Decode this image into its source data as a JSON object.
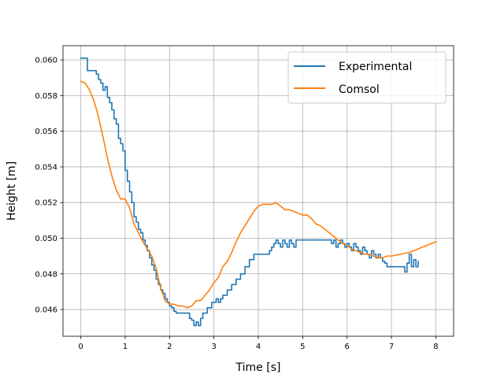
{
  "chart_data": {
    "type": "line",
    "xlabel": "Time [s]",
    "ylabel": "Height [m]",
    "xlim": [
      -0.4,
      8.4
    ],
    "ylim": [
      0.0445,
      0.0608
    ],
    "xticks": [
      0,
      1,
      2,
      3,
      4,
      5,
      6,
      7,
      8
    ],
    "xtick_labels": [
      "0",
      "1",
      "2",
      "3",
      "4",
      "5",
      "6",
      "7",
      "8"
    ],
    "yticks": [
      0.046,
      0.048,
      0.05,
      0.052,
      0.054,
      0.056,
      0.058,
      0.06
    ],
    "ytick_labels": [
      "0.046",
      "0.048",
      "0.050",
      "0.052",
      "0.054",
      "0.056",
      "0.058",
      "0.060"
    ],
    "grid": true,
    "legend_position": "top-right",
    "series": [
      {
        "name": "Experimental",
        "color": "#1f77b4",
        "step": true,
        "x": [
          0,
          0.1,
          0.15,
          0.3,
          0.35,
          0.4,
          0.45,
          0.5,
          0.55,
          0.6,
          0.65,
          0.7,
          0.75,
          0.8,
          0.85,
          0.9,
          0.95,
          1.0,
          1.05,
          1.1,
          1.15,
          1.2,
          1.25,
          1.3,
          1.35,
          1.4,
          1.45,
          1.5,
          1.55,
          1.6,
          1.65,
          1.7,
          1.75,
          1.8,
          1.85,
          1.9,
          1.95,
          2.0,
          2.05,
          2.1,
          2.15,
          2.2,
          2.3,
          2.4,
          2.45,
          2.5,
          2.55,
          2.6,
          2.65,
          2.7,
          2.75,
          2.8,
          2.85,
          2.9,
          2.95,
          3.0,
          3.05,
          3.1,
          3.15,
          3.2,
          3.3,
          3.4,
          3.5,
          3.6,
          3.7,
          3.8,
          3.9,
          4.0,
          4.1,
          4.2,
          4.25,
          4.3,
          4.35,
          4.4,
          4.45,
          4.5,
          4.55,
          4.6,
          4.65,
          4.7,
          4.75,
          4.8,
          4.85,
          4.9,
          5.0,
          5.1,
          5.2,
          5.3,
          5.4,
          5.5,
          5.6,
          5.65,
          5.7,
          5.75,
          5.8,
          5.85,
          5.9,
          5.95,
          6.0,
          6.05,
          6.1,
          6.15,
          6.2,
          6.25,
          6.3,
          6.35,
          6.4,
          6.45,
          6.5,
          6.55,
          6.6,
          6.65,
          6.7,
          6.75,
          6.8,
          6.85,
          6.9,
          6.95,
          7.0,
          7.05,
          7.1,
          7.15,
          7.2,
          7.25,
          7.3,
          7.35,
          7.4,
          7.45,
          7.5,
          7.55,
          7.6
        ],
        "y": [
          0.0601,
          0.0601,
          0.0594,
          0.0594,
          0.0592,
          0.0589,
          0.0587,
          0.0583,
          0.0585,
          0.0579,
          0.0576,
          0.0572,
          0.0567,
          0.0564,
          0.0556,
          0.0553,
          0.0549,
          0.0538,
          0.0532,
          0.0526,
          0.052,
          0.0512,
          0.0509,
          0.0505,
          0.0503,
          0.0499,
          0.0496,
          0.0493,
          0.0489,
          0.0485,
          0.0482,
          0.0477,
          0.0474,
          0.0471,
          0.0469,
          0.0466,
          0.0464,
          0.0462,
          0.0461,
          0.0459,
          0.0458,
          0.0458,
          0.0458,
          0.0458,
          0.0455,
          0.0454,
          0.0451,
          0.0453,
          0.0451,
          0.0455,
          0.0458,
          0.0458,
          0.0461,
          0.0461,
          0.0464,
          0.0464,
          0.0466,
          0.0464,
          0.0466,
          0.0468,
          0.0471,
          0.0474,
          0.0477,
          0.048,
          0.0484,
          0.0488,
          0.0491,
          0.0491,
          0.0491,
          0.0491,
          0.0493,
          0.0495,
          0.0497,
          0.0499,
          0.0497,
          0.0495,
          0.0499,
          0.0497,
          0.0495,
          0.0499,
          0.0497,
          0.0495,
          0.0499,
          0.0499,
          0.0499,
          0.0499,
          0.0499,
          0.0499,
          0.0499,
          0.0499,
          0.0499,
          0.0497,
          0.0499,
          0.0495,
          0.0497,
          0.0499,
          0.0497,
          0.0495,
          0.0497,
          0.0495,
          0.0493,
          0.0497,
          0.0495,
          0.0493,
          0.0491,
          0.0495,
          0.0493,
          0.0491,
          0.0489,
          0.0493,
          0.0491,
          0.0489,
          0.0491,
          0.0489,
          0.0487,
          0.0486,
          0.0484,
          0.0484,
          0.0484,
          0.0484,
          0.0484,
          0.0484,
          0.0484,
          0.0484,
          0.0481,
          0.0486,
          0.0491,
          0.0484,
          0.0488,
          0.0484,
          0.0487
        ]
      },
      {
        "name": "Comsol",
        "color": "#ff7f0e",
        "step": false,
        "x": [
          0,
          0.1,
          0.2,
          0.3,
          0.4,
          0.5,
          0.6,
          0.7,
          0.8,
          0.9,
          1.0,
          1.1,
          1.2,
          1.3,
          1.4,
          1.5,
          1.6,
          1.7,
          1.8,
          1.9,
          2.0,
          2.1,
          2.2,
          2.3,
          2.4,
          2.5,
          2.6,
          2.7,
          2.8,
          2.9,
          3.0,
          3.1,
          3.2,
          3.3,
          3.4,
          3.5,
          3.6,
          3.7,
          3.8,
          3.9,
          4.0,
          4.1,
          4.2,
          4.3,
          4.4,
          4.5,
          4.6,
          4.7,
          4.8,
          4.9,
          5.0,
          5.1,
          5.2,
          5.3,
          5.4,
          5.5,
          5.6,
          5.7,
          5.8,
          5.9,
          6.0,
          6.1,
          6.2,
          6.3,
          6.4,
          6.5,
          6.6,
          6.7,
          6.8,
          6.9,
          7.0,
          7.2,
          7.4,
          7.6,
          7.8,
          8.0
        ],
        "y": [
          0.0588,
          0.0587,
          0.0583,
          0.0577,
          0.0568,
          0.0557,
          0.0545,
          0.0535,
          0.0527,
          0.0522,
          0.0522,
          0.0517,
          0.0508,
          0.0503,
          0.0498,
          0.0494,
          0.049,
          0.0483,
          0.0472,
          0.0465,
          0.0463,
          0.0463,
          0.0462,
          0.0462,
          0.0461,
          0.0462,
          0.0465,
          0.0465,
          0.0468,
          0.0471,
          0.0475,
          0.0478,
          0.0484,
          0.0487,
          0.0492,
          0.0498,
          0.0503,
          0.0507,
          0.0511,
          0.0515,
          0.0518,
          0.0519,
          0.0519,
          0.0519,
          0.052,
          0.0518,
          0.0516,
          0.0516,
          0.0515,
          0.0514,
          0.0513,
          0.0513,
          0.0511,
          0.0508,
          0.0507,
          0.0505,
          0.0503,
          0.0501,
          0.0499,
          0.0497,
          0.0496,
          0.0494,
          0.0493,
          0.0492,
          0.0491,
          0.0491,
          0.049,
          0.0489,
          0.0489,
          0.049,
          0.049,
          0.0491,
          0.0492,
          0.0494,
          0.0496,
          0.0498
        ]
      }
    ]
  }
}
